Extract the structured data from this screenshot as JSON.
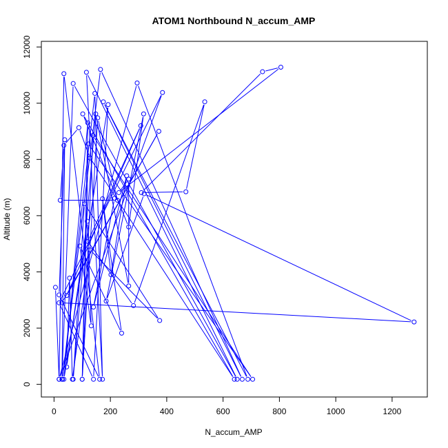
{
  "chart_data": {
    "type": "line",
    "title": "ATOM1 Northbound N_accum_AMP",
    "xlabel": "N_accum_AMP",
    "ylabel": "Altitude (m)",
    "xlim": [
      -45,
      1325
    ],
    "ylim": [
      -450,
      12200
    ],
    "x_ticks": [
      0,
      200,
      400,
      600,
      800,
      1000,
      1200
    ],
    "x_tick_labels": [
      "0",
      "200",
      "400",
      "600",
      "800",
      "1000",
      "1200"
    ],
    "y_ticks": [
      0,
      2000,
      4000,
      6000,
      8000,
      10000,
      12000
    ],
    "y_tick_labels": [
      "0",
      "2000",
      "4000",
      "6000",
      "8000",
      "10000",
      "12000"
    ],
    "grid": false,
    "line_color": "#0000ff",
    "marker": "open-circle",
    "series": [
      {
        "points": [
          [
            5,
            3450
          ],
          [
            18,
            180
          ],
          [
            35,
            11050
          ],
          [
            162,
            180
          ],
          [
            18,
            3180
          ],
          [
            38,
            8700
          ],
          [
            28,
            180
          ],
          [
            68,
            10700
          ],
          [
            650,
            180
          ],
          [
            115,
            11100
          ],
          [
            172,
            180
          ],
          [
            145,
            10350
          ],
          [
            30,
            180
          ],
          [
            165,
            11200
          ],
          [
            668,
            180
          ],
          [
            175,
            10050
          ],
          [
            688,
            180
          ],
          [
            295,
            10720
          ],
          [
            18,
            180
          ],
          [
            385,
            10380
          ],
          [
            18,
            2900
          ],
          [
            140,
            180
          ],
          [
            192,
            9950
          ],
          [
            35,
            180
          ],
          [
            120,
            9300
          ],
          [
            100,
            180
          ],
          [
            122,
            8550
          ],
          [
            705,
            180
          ],
          [
            138,
            8850
          ],
          [
            100,
            180
          ],
          [
            155,
            9480
          ],
          [
            225,
            6550
          ],
          [
            22,
            6550
          ],
          [
            35,
            8500
          ],
          [
            88,
            9130
          ],
          [
            128,
            8050
          ],
          [
            640,
            180
          ],
          [
            102,
            9620
          ],
          [
            265,
            5600
          ],
          [
            318,
            9620
          ],
          [
            185,
            2960
          ],
          [
            320,
            6780
          ],
          [
            1278,
            2220
          ],
          [
            28,
            2900
          ],
          [
            372,
            9000
          ],
          [
            45,
            3160
          ],
          [
            308,
            9200
          ],
          [
            120,
            5080
          ],
          [
            282,
            2800
          ],
          [
            535,
            10050
          ],
          [
            468,
            6850
          ],
          [
            310,
            6820
          ],
          [
            740,
            11120
          ],
          [
            805,
            11280
          ],
          [
            230,
            6820
          ],
          [
            265,
            7300
          ],
          [
            265,
            3500
          ],
          [
            148,
            9620
          ],
          [
            68,
            180
          ],
          [
            108,
            6420
          ],
          [
            375,
            2270
          ],
          [
            128,
            4780
          ],
          [
            65,
            180
          ],
          [
            55,
            3780
          ],
          [
            45,
            620
          ],
          [
            118,
            5800
          ],
          [
            132,
            2080
          ],
          [
            92,
            4920
          ],
          [
            240,
            1820
          ],
          [
            172,
            6600
          ],
          [
            202,
            3900
          ],
          [
            258,
            7420
          ],
          [
            140,
            2750
          ],
          [
            215,
            6620
          ]
        ]
      }
    ]
  }
}
